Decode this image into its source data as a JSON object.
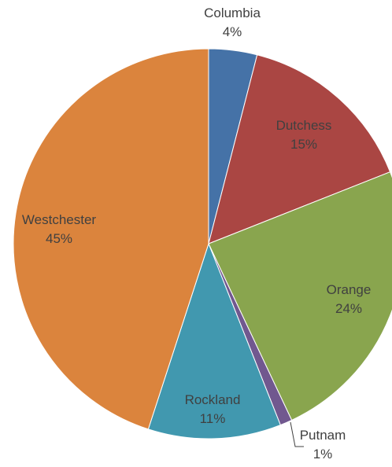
{
  "chart_data": {
    "type": "pie",
    "categories": [
      "Columbia",
      "Dutchess",
      "Orange",
      "Putnam",
      "Rockland",
      "Westchester"
    ],
    "values": [
      4,
      15,
      24,
      1,
      11,
      45
    ],
    "value_labels": [
      "4%",
      "15%",
      "24%",
      "1%",
      "11%",
      "45%"
    ],
    "colors": [
      "#4572a7",
      "#aa4643",
      "#89a54e",
      "#71588f",
      "#4198af",
      "#db843d"
    ]
  }
}
